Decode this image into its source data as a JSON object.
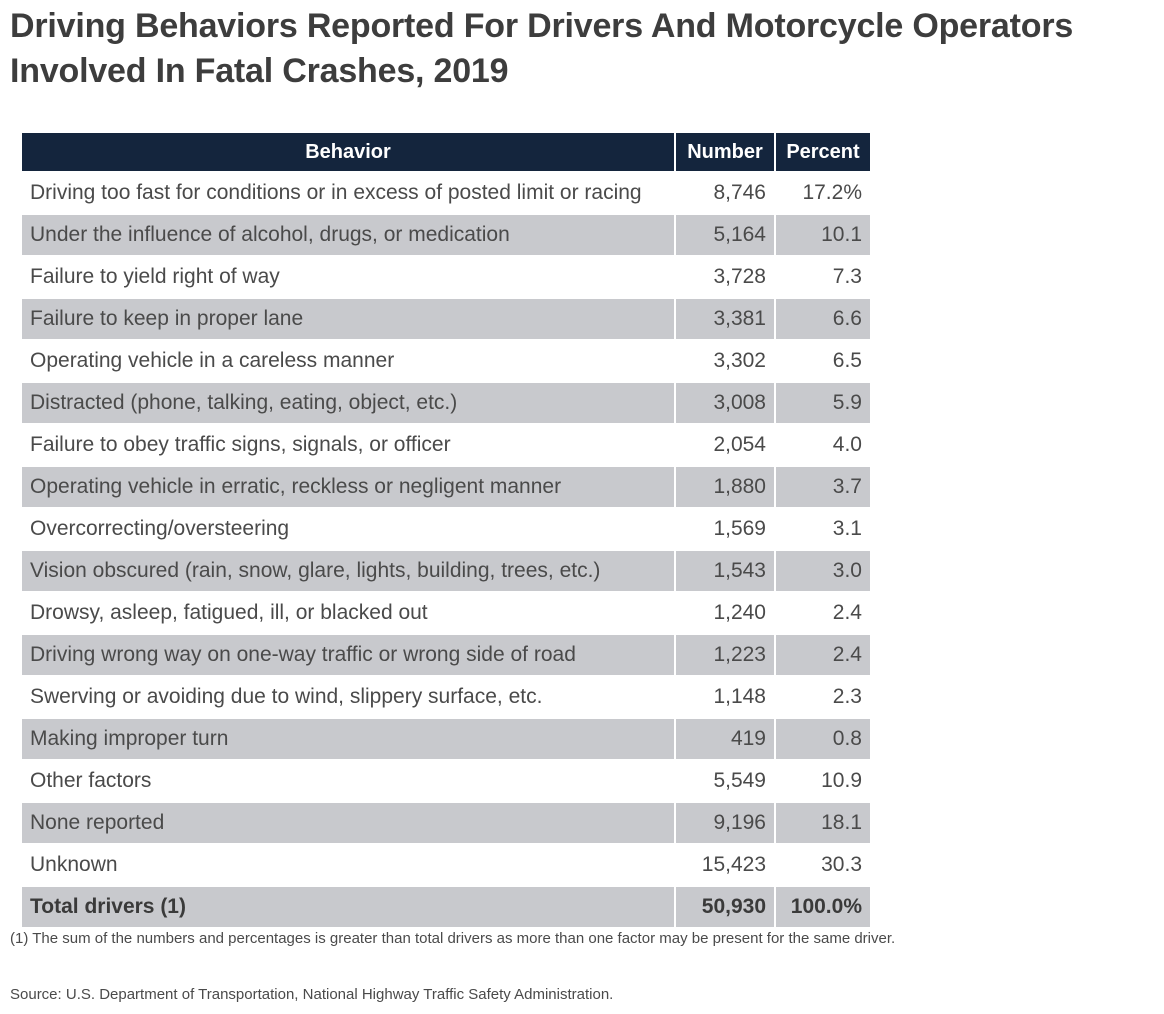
{
  "title": "Driving Behaviors Reported For Drivers And Motorcycle Operators Involved In Fatal Crashes, 2019",
  "table": {
    "headers": {
      "behavior": "Behavior",
      "number": "Number",
      "percent": "Percent"
    },
    "rows": [
      {
        "behavior": "Driving too fast for conditions or in excess of posted limit or racing",
        "number": "8,746",
        "percent": "17.2%"
      },
      {
        "behavior": "Under the influence of alcohol, drugs, or medication",
        "number": "5,164",
        "percent": "10.1"
      },
      {
        "behavior": "Failure to yield right of way",
        "number": "3,728",
        "percent": "7.3"
      },
      {
        "behavior": "Failure to keep in proper lane",
        "number": "3,381",
        "percent": "6.6"
      },
      {
        "behavior": "Operating vehicle in a careless manner",
        "number": "3,302",
        "percent": "6.5"
      },
      {
        "behavior": "Distracted (phone, talking, eating, object, etc.)",
        "number": "3,008",
        "percent": "5.9"
      },
      {
        "behavior": "Failure to obey traffic signs, signals, or officer",
        "number": "2,054",
        "percent": "4.0"
      },
      {
        "behavior": "Operating vehicle in erratic, reckless or negligent manner",
        "number": "1,880",
        "percent": "3.7"
      },
      {
        "behavior": "Overcorrecting/oversteering",
        "number": "1,569",
        "percent": "3.1"
      },
      {
        "behavior": "Vision obscured (rain, snow, glare, lights, building, trees, etc.)",
        "number": "1,543",
        "percent": "3.0"
      },
      {
        "behavior": "Drowsy, asleep, fatigued, ill, or blacked out",
        "number": "1,240",
        "percent": "2.4"
      },
      {
        "behavior": "Driving wrong way on one-way traffic or wrong side of road",
        "number": "1,223",
        "percent": "2.4"
      },
      {
        "behavior": "Swerving or avoiding due to wind, slippery surface, etc.",
        "number": "1,148",
        "percent": "2.3"
      },
      {
        "behavior": "Making improper turn",
        "number": "419",
        "percent": "0.8"
      },
      {
        "behavior": "Other factors",
        "number": "5,549",
        "percent": "10.9"
      },
      {
        "behavior": "None reported",
        "number": "9,196",
        "percent": "18.1"
      },
      {
        "behavior": "Unknown",
        "number": "15,423",
        "percent": "30.3"
      }
    ],
    "total": {
      "behavior": "Total drivers (1)",
      "number": "50,930",
      "percent": "100.0%"
    }
  },
  "footnote": "(1) The sum of the numbers and percentages is greater than total drivers as more than one factor may be present for the same driver.",
  "source": "Source: U.S. Department of Transportation, National Highway Traffic Safety Administration.",
  "colors": {
    "header_bg": "#14253d",
    "shaded_row_bg": "#c8c9cd",
    "text": "#4a4a4a"
  }
}
